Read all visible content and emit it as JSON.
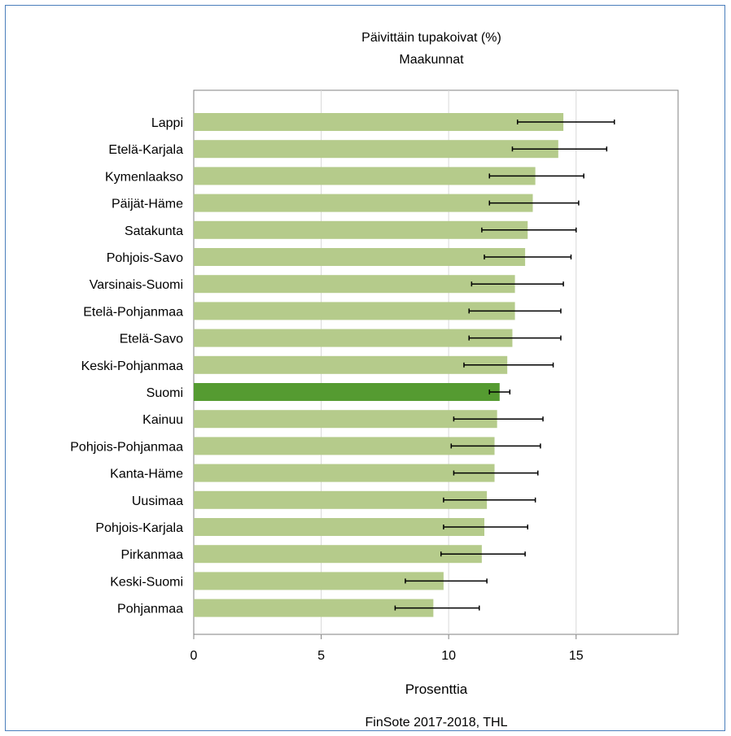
{
  "chart_data": {
    "type": "bar",
    "orientation": "horizontal",
    "title": "Päivittäin tupakoivat (%)",
    "subtitle": "Maakunnat",
    "xlabel": "Prosenttia",
    "source": "FinSote 2017-2018, THL",
    "xlim": [
      0,
      19
    ],
    "xticks": [
      0,
      5,
      10,
      15
    ],
    "grid": true,
    "colors": {
      "bar": "#b5cb8b",
      "highlight": "#559b31",
      "error": "#000000",
      "grid": "#d9d9d9",
      "axis": "#808080"
    },
    "highlight": "Suomi",
    "categories": [
      "Lappi",
      "Etelä-Karjala",
      "Kymenlaakso",
      "Päijät-Häme",
      "Satakunta",
      "Pohjois-Savo",
      "Varsinais-Suomi",
      "Etelä-Pohjanmaa",
      "Etelä-Savo",
      "Keski-Pohjanmaa",
      "Suomi",
      "Kainuu",
      "Pohjois-Pohjanmaa",
      "Kanta-Häme",
      "Uusimaa",
      "Pohjois-Karjala",
      "Pirkanmaa",
      "Keski-Suomi",
      "Pohjanmaa"
    ],
    "values": [
      14.5,
      14.3,
      13.4,
      13.3,
      13.1,
      13.0,
      12.6,
      12.6,
      12.5,
      12.3,
      12.0,
      11.9,
      11.8,
      11.8,
      11.5,
      11.4,
      11.3,
      9.8,
      9.4
    ],
    "ci_low": [
      12.7,
      12.5,
      11.6,
      11.6,
      11.3,
      11.4,
      10.9,
      10.8,
      10.8,
      10.6,
      11.6,
      10.2,
      10.1,
      10.2,
      9.8,
      9.8,
      9.7,
      8.3,
      7.9
    ],
    "ci_high": [
      16.5,
      16.2,
      15.3,
      15.1,
      15.0,
      14.8,
      14.5,
      14.4,
      14.4,
      14.1,
      12.4,
      13.7,
      13.6,
      13.5,
      13.4,
      13.1,
      13.0,
      11.5,
      11.2
    ]
  }
}
